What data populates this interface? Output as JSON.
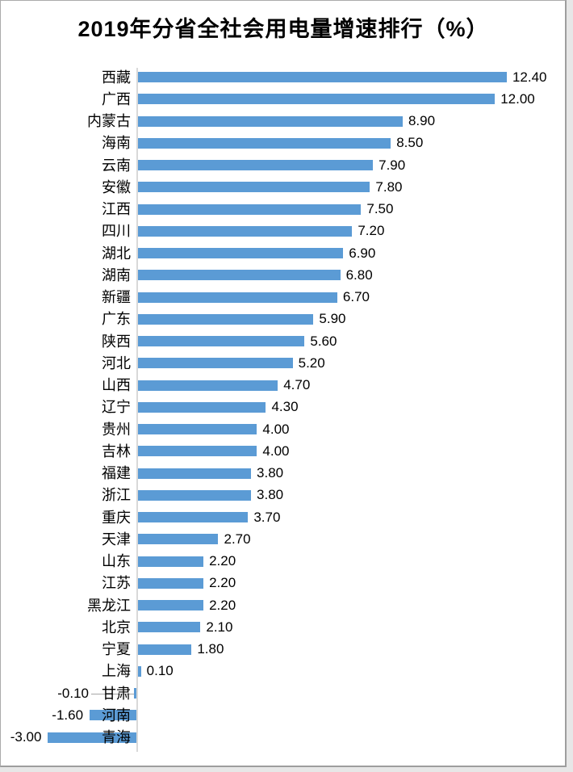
{
  "chart_data": {
    "type": "bar",
    "orientation": "horizontal",
    "title": "2019年分省全社会用电量增速排行（%）",
    "xlabel": "",
    "ylabel": "",
    "xlim": [
      -3.5,
      14
    ],
    "grid": false,
    "legend": null,
    "value_format": "0.00",
    "bar_color": "#5B9BD5",
    "axis_line_color": "#D9D9D9",
    "leader_line_color": "#A6A6A6",
    "text_color": "#000000",
    "items": [
      {
        "category": "西藏",
        "value": 12.4,
        "label": "12.40"
      },
      {
        "category": "广西",
        "value": 12.0,
        "label": "12.00"
      },
      {
        "category": "内蒙古",
        "value": 8.9,
        "label": "8.90"
      },
      {
        "category": "海南",
        "value": 8.5,
        "label": "8.50"
      },
      {
        "category": "云南",
        "value": 7.9,
        "label": "7.90"
      },
      {
        "category": "安徽",
        "value": 7.8,
        "label": "7.80"
      },
      {
        "category": "江西",
        "value": 7.5,
        "label": "7.50"
      },
      {
        "category": "四川",
        "value": 7.2,
        "label": "7.20"
      },
      {
        "category": "湖北",
        "value": 6.9,
        "label": "6.90"
      },
      {
        "category": "湖南",
        "value": 6.8,
        "label": "6.80"
      },
      {
        "category": "新疆",
        "value": 6.7,
        "label": "6.70"
      },
      {
        "category": "广东",
        "value": 5.9,
        "label": "5.90"
      },
      {
        "category": "陕西",
        "value": 5.6,
        "label": "5.60"
      },
      {
        "category": "河北",
        "value": 5.2,
        "label": "5.20"
      },
      {
        "category": "山西",
        "value": 4.7,
        "label": "4.70"
      },
      {
        "category": "辽宁",
        "value": 4.3,
        "label": "4.30"
      },
      {
        "category": "贵州",
        "value": 4.0,
        "label": "4.00"
      },
      {
        "category": "吉林",
        "value": 4.0,
        "label": "4.00"
      },
      {
        "category": "福建",
        "value": 3.8,
        "label": "3.80"
      },
      {
        "category": "浙江",
        "value": 3.8,
        "label": "3.80"
      },
      {
        "category": "重庆",
        "value": 3.7,
        "label": "3.70"
      },
      {
        "category": "天津",
        "value": 2.7,
        "label": "2.70"
      },
      {
        "category": "山东",
        "value": 2.2,
        "label": "2.20"
      },
      {
        "category": "江苏",
        "value": 2.2,
        "label": "2.20"
      },
      {
        "category": "黑龙江",
        "value": 2.2,
        "label": "2.20"
      },
      {
        "category": "北京",
        "value": 2.1,
        "label": "2.10"
      },
      {
        "category": "宁夏",
        "value": 1.8,
        "label": "1.80"
      },
      {
        "category": "上海",
        "value": 0.1,
        "label": "0.10"
      },
      {
        "category": "甘肃",
        "value": -0.1,
        "label": "-0.10",
        "leader_line": true
      },
      {
        "category": "河南",
        "value": -1.6,
        "label": "-1.60"
      },
      {
        "category": "青海",
        "value": -3.0,
        "label": "-3.00"
      }
    ]
  }
}
